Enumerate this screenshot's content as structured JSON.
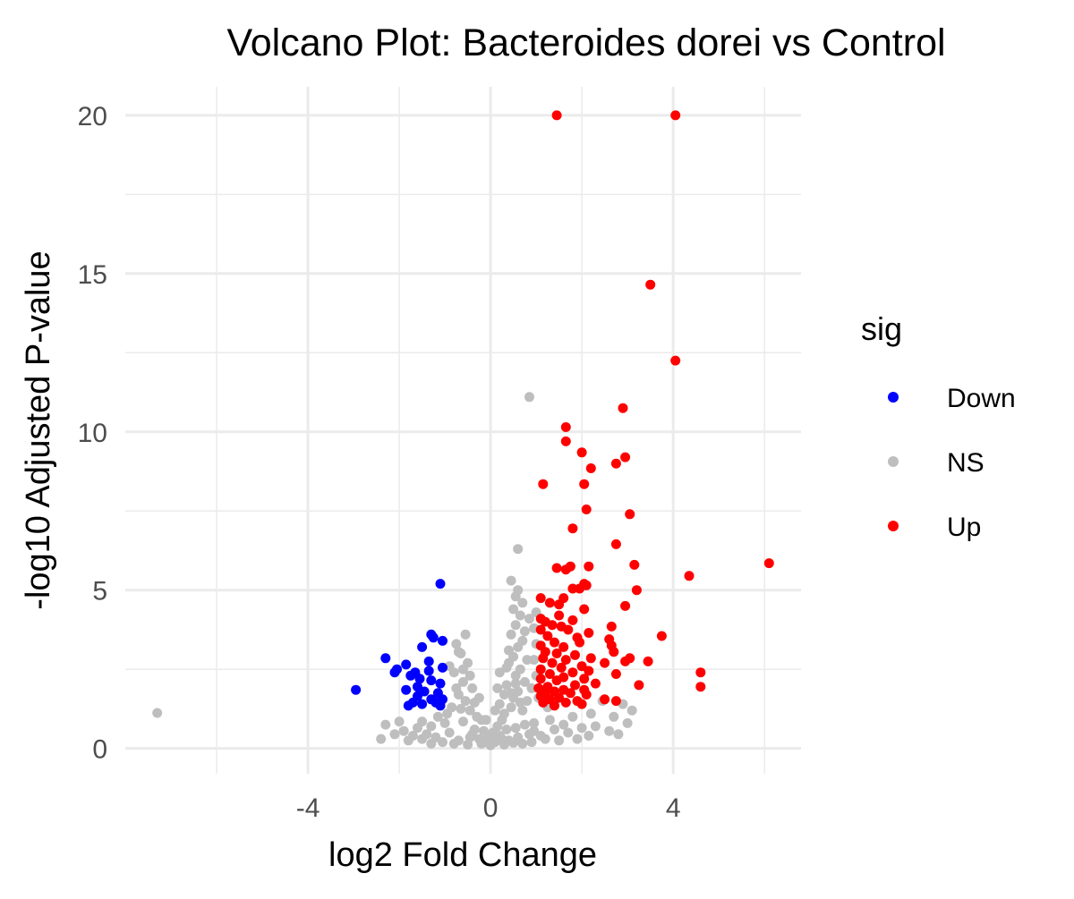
{
  "chart_data": {
    "type": "scatter",
    "title": "Volcano Plot: Bacteroides dorei vs Control",
    "xlabel": "log2 Fold Change",
    "ylabel": "-log10 Adjusted P-value",
    "xlim": [
      -8,
      6.8
    ],
    "ylim": [
      -0.8,
      20.9
    ],
    "x_ticks": [
      -4,
      0,
      4
    ],
    "x_tick_labels": [
      "-4",
      "0",
      "4"
    ],
    "x_minor_gridlines": [
      -6,
      -2,
      2,
      6
    ],
    "y_ticks": [
      0,
      5,
      10,
      15,
      20
    ],
    "y_tick_labels": [
      "0",
      "5",
      "10",
      "15",
      "20"
    ],
    "y_minor_gridlines": [
      2.5,
      7.5,
      12.5,
      17.5
    ],
    "grid": true,
    "legend": {
      "title": "sig",
      "position": "right",
      "entries": [
        {
          "label": "Down",
          "color": "#0000FF"
        },
        {
          "label": "NS",
          "color": "#BEBEBE"
        },
        {
          "label": "Up",
          "color": "#FF0000"
        }
      ]
    },
    "series": [
      {
        "name": "NS",
        "color": "#BEBEBE",
        "points": [
          [
            -7.3,
            1.12
          ],
          [
            0.85,
            11.1
          ],
          [
            0.6,
            6.3
          ],
          [
            0.45,
            5.3
          ],
          [
            0.6,
            5.0
          ],
          [
            0.55,
            4.8
          ],
          [
            0.7,
            4.6
          ],
          [
            0.5,
            4.4
          ],
          [
            0.65,
            4.2
          ],
          [
            0.55,
            3.9
          ],
          [
            0.45,
            3.6
          ],
          [
            0.7,
            3.4
          ],
          [
            0.6,
            3.2
          ],
          [
            0.5,
            2.9
          ],
          [
            0.4,
            2.7
          ],
          [
            0.65,
            2.5
          ],
          [
            0.55,
            2.3
          ],
          [
            0.75,
            2.1
          ],
          [
            0.35,
            2.0
          ],
          [
            0.6,
            1.8
          ],
          [
            0.5,
            1.6
          ],
          [
            0.8,
            1.5
          ],
          [
            0.45,
            1.3
          ],
          [
            0.7,
            1.2
          ],
          [
            -0.55,
            3.6
          ],
          [
            -0.75,
            3.3
          ],
          [
            -0.65,
            3.0
          ],
          [
            -0.5,
            2.7
          ],
          [
            -0.8,
            2.4
          ],
          [
            -0.6,
            2.1
          ],
          [
            -0.4,
            1.9
          ],
          [
            -0.7,
            1.7
          ],
          [
            -0.55,
            1.5
          ],
          [
            -0.85,
            1.3
          ],
          [
            -0.45,
            1.2
          ],
          [
            -0.3,
            1.0
          ],
          [
            -0.95,
            1.1
          ],
          [
            -0.2,
            0.9
          ],
          [
            -0.6,
            0.85
          ],
          [
            -1.0,
            0.8
          ],
          [
            -1.3,
            0.7
          ],
          [
            -1.6,
            0.65
          ],
          [
            -1.9,
            0.55
          ],
          [
            -2.3,
            0.75
          ],
          [
            -2.1,
            0.45
          ],
          [
            -1.7,
            0.4
          ],
          [
            -2.4,
            0.3
          ],
          [
            -1.5,
            0.3
          ],
          [
            -1.2,
            0.35
          ],
          [
            -0.9,
            0.5
          ],
          [
            -0.35,
            0.6
          ],
          [
            -0.15,
            0.55
          ],
          [
            0.05,
            0.5
          ],
          [
            0.15,
            0.7
          ],
          [
            0.25,
            0.9
          ],
          [
            0.3,
            1.1
          ],
          [
            0.2,
            1.4
          ],
          [
            0.3,
            1.7
          ],
          [
            0.25,
            0.3
          ],
          [
            0.1,
            0.2
          ],
          [
            -0.1,
            0.2
          ],
          [
            -0.25,
            0.3
          ],
          [
            -0.45,
            0.35
          ],
          [
            -0.7,
            0.25
          ],
          [
            -1.05,
            0.2
          ],
          [
            0.4,
            0.25
          ],
          [
            0.6,
            0.35
          ],
          [
            0.85,
            0.45
          ],
          [
            1.1,
            0.4
          ],
          [
            1.4,
            0.6
          ],
          [
            1.7,
            0.5
          ],
          [
            2.0,
            0.65
          ],
          [
            2.3,
            0.7
          ],
          [
            2.6,
            0.55
          ],
          [
            2.8,
            0.45
          ],
          [
            1.9,
            0.3
          ],
          [
            1.5,
            0.25
          ],
          [
            1.2,
            0.3
          ],
          [
            2.45,
            1.5
          ],
          [
            2.9,
            1.4
          ],
          [
            3.1,
            1.2
          ],
          [
            2.2,
            1.1
          ],
          [
            1.8,
            1.0
          ],
          [
            1.3,
            0.9
          ],
          [
            0.95,
            0.8
          ],
          [
            0.9,
            1.9
          ],
          [
            1.0,
            2.3
          ],
          [
            0.95,
            2.8
          ],
          [
            1.0,
            3.3
          ],
          [
            0.95,
            3.8
          ],
          [
            1.0,
            4.3
          ],
          [
            -0.2,
            0.15
          ],
          [
            0.0,
            0.1
          ],
          [
            0.3,
            0.12
          ],
          [
            0.5,
            0.18
          ],
          [
            -0.5,
            0.12
          ],
          [
            -0.8,
            0.15
          ],
          [
            0.7,
            0.15
          ],
          [
            0.9,
            0.2
          ],
          [
            -1.3,
            0.15
          ],
          [
            -1.5,
            0.85
          ],
          [
            -1.15,
            1.0
          ],
          [
            -1.4,
            0.45
          ],
          [
            -1.8,
            0.25
          ],
          [
            -2.0,
            0.85
          ],
          [
            -0.65,
            1.25
          ],
          [
            -0.35,
            1.45
          ],
          [
            0.15,
            1.9
          ],
          [
            0.2,
            2.4
          ],
          [
            0.35,
            2.55
          ],
          [
            0.4,
            3.1
          ],
          [
            0.8,
            2.8
          ],
          [
            0.75,
            3.7
          ],
          [
            0.85,
            4.1
          ],
          [
            -0.45,
            2.3
          ],
          [
            -0.25,
            1.6
          ],
          [
            -0.1,
            0.9
          ],
          [
            0.1,
            1.2
          ],
          [
            3.0,
            0.8
          ],
          [
            2.7,
            1.0
          ],
          [
            2.15,
            0.4
          ],
          [
            1.6,
            0.75
          ],
          [
            1.25,
            1.3
          ],
          [
            1.05,
            1.6
          ],
          [
            -0.75,
            1.9
          ],
          [
            -0.9,
            2.6
          ],
          [
            -0.7,
            3.05
          ],
          [
            -0.6,
            2.5
          ],
          [
            0.55,
            2.05
          ],
          [
            0.45,
            1.75
          ],
          [
            0.65,
            1.45
          ],
          [
            -0.4,
            0.45
          ],
          [
            0.2,
            0.4
          ],
          [
            0.35,
            0.6
          ],
          [
            0.55,
            0.65
          ],
          [
            0.75,
            0.75
          ],
          [
            0.95,
            0.55
          ],
          [
            -0.05,
            0.35
          ]
        ]
      },
      {
        "name": "Down",
        "color": "#0000FF",
        "points": [
          [
            -1.1,
            5.2
          ],
          [
            -1.3,
            3.6
          ],
          [
            -1.25,
            3.5
          ],
          [
            -1.05,
            3.4
          ],
          [
            -1.5,
            3.2
          ],
          [
            -2.3,
            2.85
          ],
          [
            -1.05,
            2.55
          ],
          [
            -1.35,
            2.75
          ],
          [
            -1.85,
            2.65
          ],
          [
            -2.05,
            2.5
          ],
          [
            -1.65,
            2.4
          ],
          [
            -2.1,
            2.4
          ],
          [
            -1.35,
            2.45
          ],
          [
            -1.75,
            2.3
          ],
          [
            -1.55,
            2.2
          ],
          [
            -1.3,
            2.15
          ],
          [
            -1.1,
            2.05
          ],
          [
            -1.6,
            1.95
          ],
          [
            -2.95,
            1.85
          ],
          [
            -1.85,
            1.85
          ],
          [
            -1.45,
            1.8
          ],
          [
            -1.15,
            1.75
          ],
          [
            -1.6,
            1.65
          ],
          [
            -1.3,
            1.55
          ],
          [
            -1.7,
            1.45
          ],
          [
            -1.2,
            1.45
          ],
          [
            -1.5,
            1.4
          ],
          [
            -1.8,
            1.35
          ],
          [
            -1.1,
            1.35
          ],
          [
            -1.05,
            1.55
          ]
        ]
      },
      {
        "name": "Up",
        "color": "#FF0000",
        "points": [
          [
            1.45,
            20.0
          ],
          [
            4.05,
            20.0
          ],
          [
            3.5,
            14.65
          ],
          [
            4.05,
            12.25
          ],
          [
            2.9,
            10.75
          ],
          [
            1.65,
            10.15
          ],
          [
            1.65,
            9.7
          ],
          [
            2.0,
            9.35
          ],
          [
            2.95,
            9.2
          ],
          [
            2.75,
            9.0
          ],
          [
            2.2,
            8.85
          ],
          [
            1.15,
            8.35
          ],
          [
            2.05,
            8.35
          ],
          [
            2.1,
            7.55
          ],
          [
            3.05,
            7.4
          ],
          [
            1.8,
            6.95
          ],
          [
            2.75,
            6.45
          ],
          [
            6.1,
            5.85
          ],
          [
            3.15,
            5.8
          ],
          [
            1.45,
            5.7
          ],
          [
            1.65,
            5.65
          ],
          [
            1.75,
            5.75
          ],
          [
            2.15,
            5.75
          ],
          [
            4.35,
            5.45
          ],
          [
            2.05,
            5.2
          ],
          [
            2.1,
            5.15
          ],
          [
            1.95,
            5.05
          ],
          [
            1.8,
            5.05
          ],
          [
            3.2,
            5.0
          ],
          [
            1.6,
            4.75
          ],
          [
            1.5,
            4.55
          ],
          [
            1.3,
            4.6
          ],
          [
            1.1,
            4.75
          ],
          [
            2.95,
            4.5
          ],
          [
            2.05,
            4.4
          ],
          [
            1.5,
            4.2
          ],
          [
            1.1,
            4.1
          ],
          [
            1.2,
            4.0
          ],
          [
            1.8,
            4.05
          ],
          [
            1.35,
            3.9
          ],
          [
            1.55,
            3.85
          ],
          [
            2.65,
            3.85
          ],
          [
            1.1,
            3.75
          ],
          [
            1.7,
            3.75
          ],
          [
            2.15,
            3.65
          ],
          [
            1.25,
            3.55
          ],
          [
            1.9,
            3.5
          ],
          [
            3.75,
            3.55
          ],
          [
            2.6,
            3.45
          ],
          [
            1.4,
            3.35
          ],
          [
            1.1,
            3.25
          ],
          [
            1.95,
            3.35
          ],
          [
            1.6,
            3.2
          ],
          [
            2.65,
            3.25
          ],
          [
            1.2,
            3.05
          ],
          [
            1.45,
            3.0
          ],
          [
            2.7,
            3.05
          ],
          [
            1.85,
            2.95
          ],
          [
            2.2,
            2.85
          ],
          [
            3.05,
            2.85
          ],
          [
            1.15,
            2.85
          ],
          [
            1.65,
            2.8
          ],
          [
            2.95,
            2.75
          ],
          [
            3.45,
            2.75
          ],
          [
            2.5,
            2.7
          ],
          [
            1.35,
            2.7
          ],
          [
            2.0,
            2.6
          ],
          [
            1.55,
            2.55
          ],
          [
            1.1,
            2.5
          ],
          [
            2.15,
            2.45
          ],
          [
            4.6,
            2.4
          ],
          [
            1.8,
            2.4
          ],
          [
            1.3,
            2.35
          ],
          [
            2.75,
            2.35
          ],
          [
            1.6,
            2.25
          ],
          [
            2.05,
            2.2
          ],
          [
            1.1,
            2.2
          ],
          [
            1.45,
            2.15
          ],
          [
            2.3,
            2.05
          ],
          [
            3.25,
            2.0
          ],
          [
            1.85,
            2.0
          ],
          [
            1.25,
            1.95
          ],
          [
            4.6,
            1.95
          ],
          [
            1.05,
            1.9
          ],
          [
            1.6,
            1.85
          ],
          [
            2.05,
            1.85
          ],
          [
            1.4,
            1.8
          ],
          [
            1.2,
            1.75
          ],
          [
            1.75,
            1.75
          ],
          [
            2.1,
            1.7
          ],
          [
            1.1,
            1.65
          ],
          [
            1.5,
            1.6
          ],
          [
            2.5,
            1.55
          ],
          [
            2.75,
            1.5
          ],
          [
            1.3,
            1.55
          ],
          [
            1.9,
            1.5
          ],
          [
            1.65,
            1.45
          ],
          [
            1.15,
            1.45
          ],
          [
            2.0,
            1.4
          ],
          [
            1.4,
            1.35
          ]
        ]
      }
    ]
  }
}
